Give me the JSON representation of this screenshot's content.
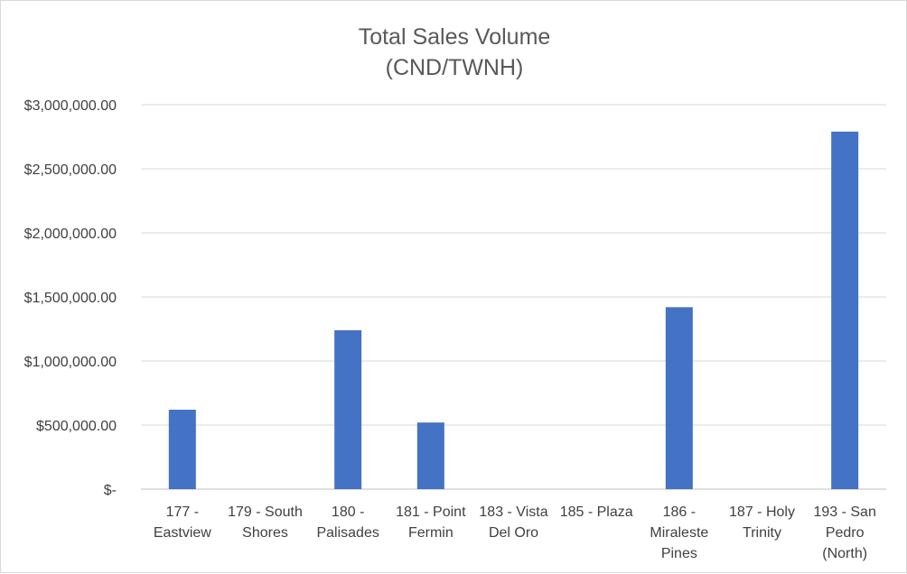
{
  "chart_data": {
    "type": "bar",
    "title": "Total Sales Volume",
    "subtitle": "(CND/TWNH)",
    "xlabel": "",
    "ylabel": "",
    "ylim": [
      0,
      3000000
    ],
    "y_ticks": [
      {
        "value": 0,
        "label": "$-"
      },
      {
        "value": 500000,
        "label": "$500,000.00"
      },
      {
        "value": 1000000,
        "label": "$1,000,000.00"
      },
      {
        "value": 1500000,
        "label": "$1,500,000.00"
      },
      {
        "value": 2000000,
        "label": "$2,000,000.00"
      },
      {
        "value": 2500000,
        "label": "$2,500,000.00"
      },
      {
        "value": 3000000,
        "label": "$3,000,000.00"
      }
    ],
    "categories": [
      [
        "177 -",
        "Eastview"
      ],
      [
        "179 - South",
        "Shores"
      ],
      [
        "180 -",
        "Palisades"
      ],
      [
        "181 - Point",
        "Fermin"
      ],
      [
        "183 - Vista",
        "Del Oro"
      ],
      [
        "185 - Plaza"
      ],
      [
        "186 -",
        "Miraleste",
        "Pines"
      ],
      [
        "187 - Holy",
        "Trinity"
      ],
      [
        "193 - San",
        "Pedro",
        "(North)"
      ]
    ],
    "values": [
      620000,
      0,
      1240000,
      520000,
      0,
      0,
      1420000,
      0,
      2790000
    ],
    "bar_color": "#4472c4",
    "grid": true,
    "legend": "none"
  }
}
